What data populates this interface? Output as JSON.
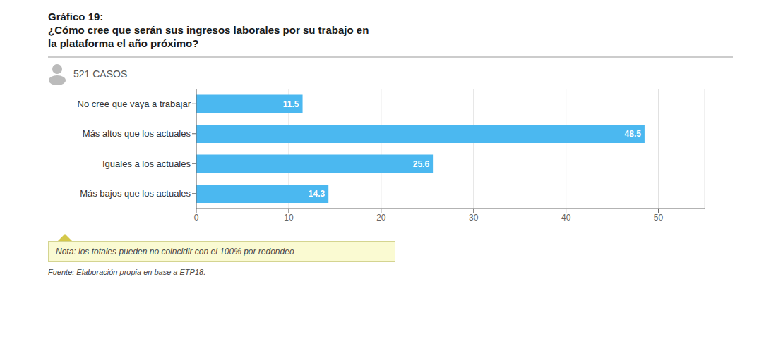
{
  "chart_data": {
    "type": "bar",
    "orientation": "horizontal",
    "title": "Gráfico 19:",
    "subtitle": "¿Cómo cree que serán sus ingresos laborales por su trabajo en la plataforma el año próximo?",
    "annotations": [
      "521 CASOS",
      "Nota: los totales pueden no coincidir con el 100% por redondeo",
      "Fuente: Elaboración propia en base a ETP18."
    ],
    "categories": [
      "No cree que vaya a trabajar",
      "Más altos que los actuales",
      "Iguales a los actuales",
      "Más bajos que los actuales"
    ],
    "values": [
      11.5,
      48.5,
      25.6,
      14.3
    ],
    "color": "#4BB8F0",
    "xlim": [
      0,
      55
    ],
    "xticks": [
      0,
      10,
      20,
      30,
      40,
      50
    ],
    "grid": true,
    "data_labels": true
  }
}
